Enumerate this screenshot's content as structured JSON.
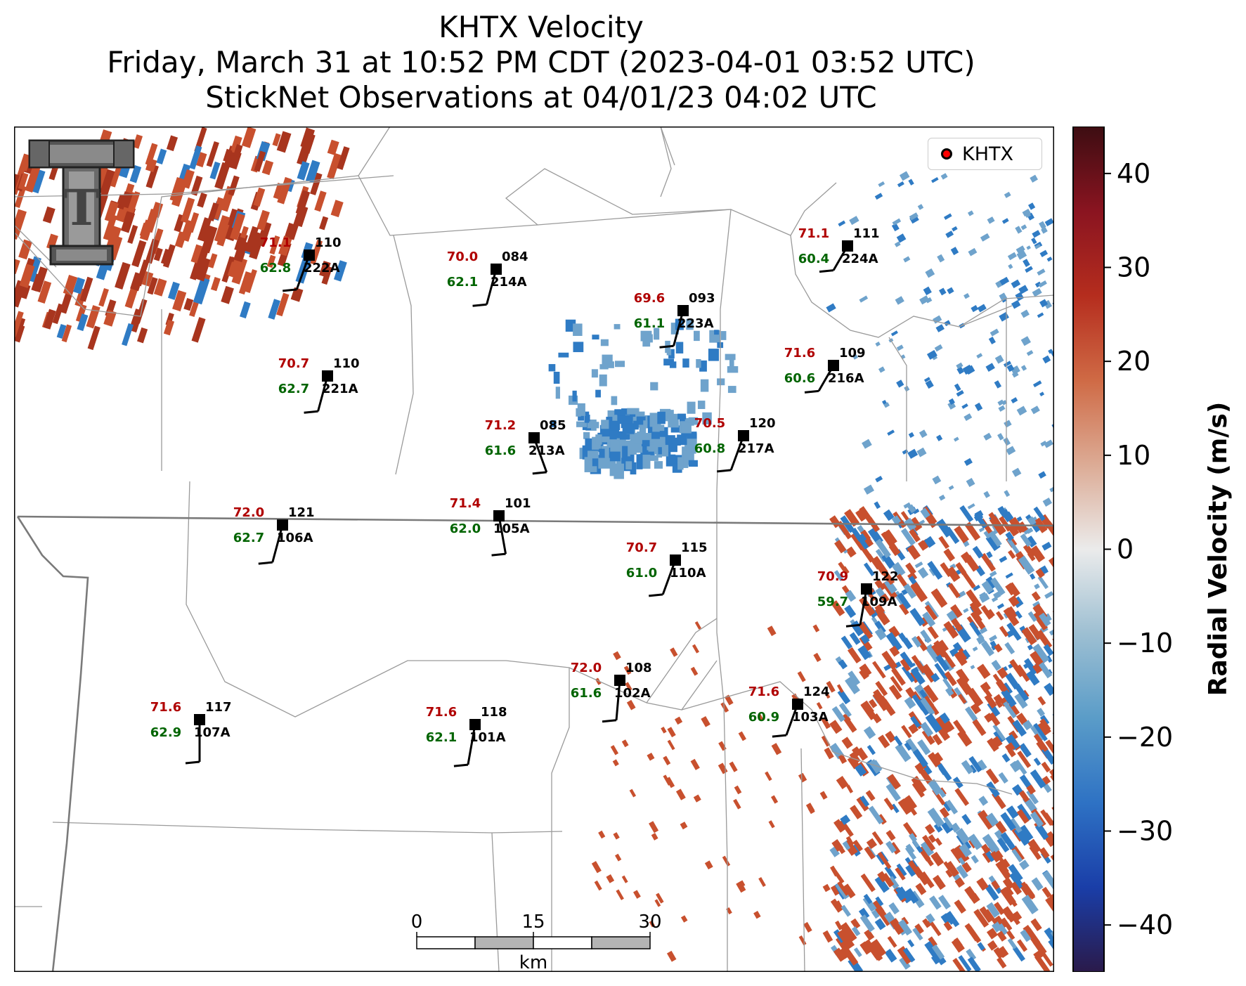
{
  "title": {
    "line1": "KHTX Velocity",
    "line2": "Friday, March 31 at 10:52 PM CDT (2023-04-01 03:52 UTC)",
    "line3": "StickNet Observations at 04/01/23 04:02 UTC"
  },
  "legend": {
    "label": "KHTX",
    "marker_color": "#ff0000"
  },
  "logo": {
    "name": "Texas Tech double-T logo",
    "text": "T"
  },
  "colorbar": {
    "label": "Radial Velocity (m/s)",
    "range": [
      -45,
      45
    ],
    "ticks": [
      "40",
      "30",
      "20",
      "10",
      "0",
      "−10",
      "−20",
      "−30",
      "−40"
    ],
    "tick_values": [
      40,
      30,
      20,
      10,
      0,
      -10,
      -20,
      -30,
      -40
    ],
    "colormap": [
      "#2a1a4a",
      "#1a3ea8",
      "#2e72c4",
      "#5a9cc8",
      "#9dbfd2",
      "#ebebeb",
      "#dcab95",
      "#cf6a45",
      "#b52d1e",
      "#8a1420",
      "#3d0d12"
    ]
  },
  "velocity_colors": {
    "inbound": "#2f7bc4",
    "inbound_light": "#6fa3cc",
    "outbound": "#c8502e",
    "outbound_dark": "#a8351e"
  },
  "scalebar": {
    "labels": [
      "0",
      "15",
      "30"
    ],
    "unit": "km"
  },
  "stations": [
    {
      "id": "110",
      "temp": "71.1",
      "dew": "62.8",
      "name": "222A"
    },
    {
      "id": "084",
      "temp": "70.0",
      "dew": "62.1",
      "name": "214A"
    },
    {
      "id": "111",
      "temp": "71.1",
      "dew": "60.4",
      "name": "224A"
    },
    {
      "id": "093",
      "temp": "69.6",
      "dew": "61.1",
      "name": "223A"
    },
    {
      "id": "110",
      "temp": "70.7",
      "dew": "62.7",
      "name": "221A"
    },
    {
      "id": "109",
      "temp": "71.6",
      "dew": "60.6",
      "name": "216A"
    },
    {
      "id": "085",
      "temp": "71.2",
      "dew": "61.6",
      "name": "213A"
    },
    {
      "id": "120",
      "temp": "70.5",
      "dew": "60.8",
      "name": "217A"
    },
    {
      "id": "121",
      "temp": "72.0",
      "dew": "62.7",
      "name": "106A"
    },
    {
      "id": "101",
      "temp": "71.4",
      "dew": "62.0",
      "name": "105A"
    },
    {
      "id": "115",
      "temp": "70.7",
      "dew": "61.0",
      "name": "110A"
    },
    {
      "id": "122",
      "temp": "70.9",
      "dew": "59.7",
      "name": "109A"
    },
    {
      "id": "108",
      "temp": "72.0",
      "dew": "61.6",
      "name": "102A"
    },
    {
      "id": "124",
      "temp": "71.6",
      "dew": "60.9",
      "name": "103A"
    },
    {
      "id": "117",
      "temp": "71.6",
      "dew": "62.9",
      "name": "107A"
    },
    {
      "id": "118",
      "temp": "71.6",
      "dew": "62.1",
      "name": "101A"
    }
  ]
}
